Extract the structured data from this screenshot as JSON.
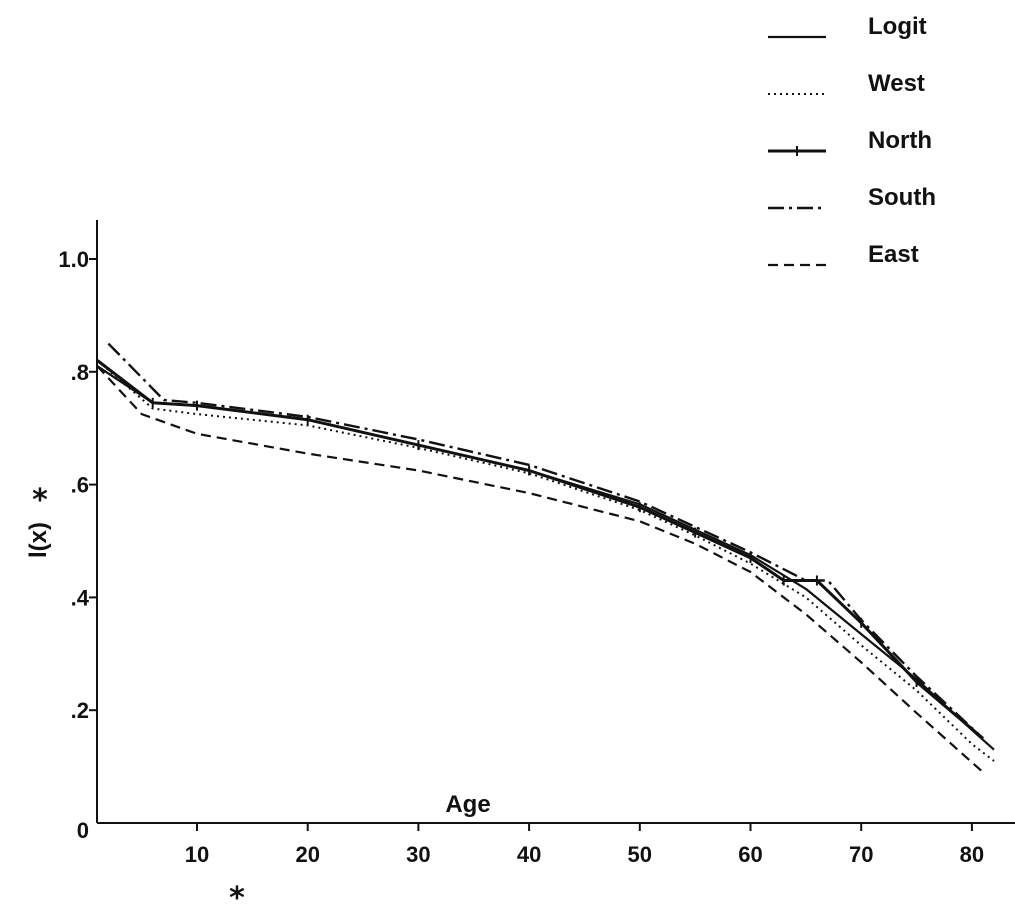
{
  "chart_data": {
    "type": "line",
    "xlabel": "Age",
    "ylabel": "l(x)",
    "ylabel_mark": "*",
    "xlabel_mark": "*",
    "xlim": [
      1,
      83
    ],
    "ylim": [
      0,
      1.0
    ],
    "x_ticks": [
      10,
      20,
      30,
      40,
      50,
      60,
      70,
      80
    ],
    "x_tick_labels": [
      "10",
      "20",
      "30",
      "40",
      "50",
      "60",
      "70",
      "80"
    ],
    "y_ticks": [
      0,
      0.2,
      0.4,
      0.6,
      0.8,
      1.0
    ],
    "y_tick_labels": [
      "0",
      ".2",
      ".4",
      ".6",
      ".8",
      "1.0"
    ],
    "grid": false,
    "legend_position": "top-right",
    "series": [
      {
        "name": "Logit",
        "style": "solid",
        "x": [
          1,
          6,
          10,
          20,
          30,
          40,
          50,
          55,
          60,
          65,
          70,
          75,
          80,
          82
        ],
        "y": [
          0.81,
          0.745,
          0.74,
          0.715,
          0.67,
          0.625,
          0.565,
          0.52,
          0.475,
          0.415,
          0.335,
          0.255,
          0.165,
          0.13
        ]
      },
      {
        "name": "West",
        "style": "dotted",
        "x": [
          1,
          6,
          10,
          20,
          30,
          40,
          50,
          55,
          60,
          65,
          70,
          75,
          80,
          82
        ],
        "y": [
          0.82,
          0.735,
          0.725,
          0.705,
          0.665,
          0.62,
          0.555,
          0.51,
          0.46,
          0.4,
          0.315,
          0.235,
          0.14,
          0.11
        ]
      },
      {
        "name": "North",
        "style": "solid-ticked",
        "x": [
          1,
          6,
          10,
          20,
          30,
          40,
          50,
          55,
          60,
          63,
          66,
          70,
          75,
          81
        ],
        "y": [
          0.82,
          0.745,
          0.74,
          0.715,
          0.67,
          0.625,
          0.56,
          0.515,
          0.47,
          0.43,
          0.43,
          0.355,
          0.25,
          0.15
        ]
      },
      {
        "name": "South",
        "style": "dash-dot",
        "x": [
          2,
          7,
          10,
          20,
          30,
          40,
          50,
          55,
          60,
          65,
          67,
          70,
          75,
          81
        ],
        "y": [
          0.85,
          0.75,
          0.745,
          0.72,
          0.68,
          0.635,
          0.57,
          0.525,
          0.48,
          0.43,
          0.43,
          0.36,
          0.26,
          0.15
        ]
      },
      {
        "name": "East",
        "style": "dashed",
        "x": [
          1,
          5,
          10,
          20,
          30,
          40,
          50,
          55,
          60,
          65,
          70,
          75,
          81
        ],
        "y": [
          0.81,
          0.725,
          0.69,
          0.655,
          0.625,
          0.585,
          0.535,
          0.495,
          0.445,
          0.37,
          0.285,
          0.195,
          0.09
        ]
      }
    ]
  }
}
